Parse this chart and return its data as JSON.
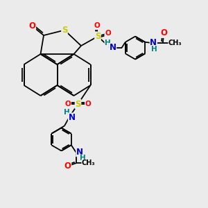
{
  "bg_color": "#ebebeb",
  "bond_color": "#000000",
  "bond_width": 1.3,
  "atom_colors": {
    "S": "#cccc00",
    "O": "#ff0000",
    "N": "#0000cc",
    "H": "#008080",
    "C": "#000000"
  },
  "font_size_atom": 8.5,
  "font_size_small": 7.5,
  "xlim": [
    0,
    10
  ],
  "ylim": [
    0,
    10
  ]
}
